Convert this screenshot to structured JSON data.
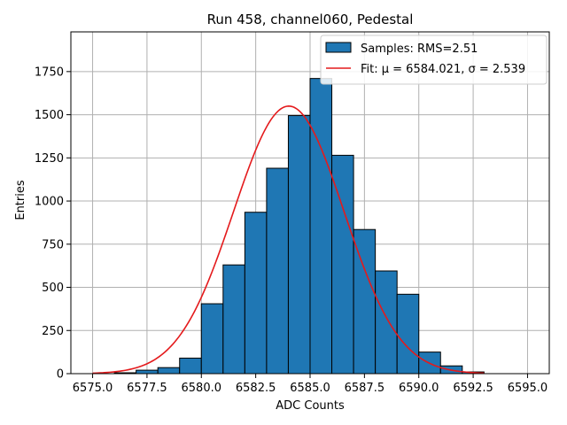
{
  "chart_data": {
    "type": "bar",
    "title": "Run 458, channel060, Pedestal",
    "xlabel": "ADC Counts",
    "ylabel": "Entries",
    "xlim": [
      6574.0,
      6596.0
    ],
    "ylim": [
      0,
      1980
    ],
    "xticks": [
      6575.0,
      6577.5,
      6580.0,
      6582.5,
      6585.0,
      6587.5,
      6590.0,
      6592.5,
      6595.0
    ],
    "xtick_labels": [
      "6575.0",
      "6577.5",
      "6580.0",
      "6582.5",
      "6585.0",
      "6587.5",
      "6590.0",
      "6592.5",
      "6595.0"
    ],
    "yticks": [
      0,
      250,
      500,
      750,
      1000,
      1250,
      1500,
      1750
    ],
    "ytick_labels": [
      "0",
      "250",
      "500",
      "750",
      "1000",
      "1250",
      "1500",
      "1750"
    ],
    "grid": true,
    "legend_position": "top-right",
    "colors": {
      "bars": "#1f77b4",
      "fit": "#e41a1c",
      "grid": "#b0b0b0"
    },
    "histogram": {
      "name": "Samples: RMS=2.51",
      "bin_edges": [
        6575,
        6576,
        6577,
        6578,
        6579,
        6580,
        6581,
        6582,
        6583,
        6584,
        6585,
        6586,
        6587,
        6588,
        6589,
        6590,
        6591,
        6592,
        6593,
        6594,
        6595
      ],
      "counts": [
        0,
        5,
        20,
        35,
        90,
        405,
        630,
        935,
        1190,
        1495,
        1710,
        1265,
        835,
        595,
        460,
        125,
        45,
        10,
        0,
        0
      ]
    },
    "fit": {
      "name": "Fit: μ = 6584.021, σ = 2.539",
      "mu": 6584.021,
      "sigma": 2.539,
      "amplitude": 1550,
      "x_range": [
        6575.0,
        6593.0
      ]
    }
  }
}
